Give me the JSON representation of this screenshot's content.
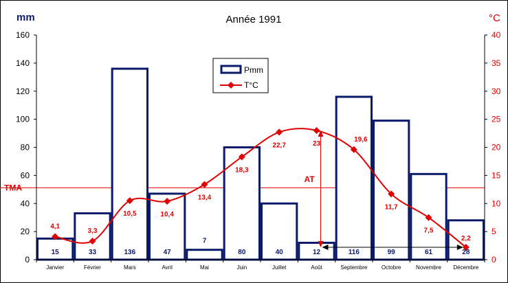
{
  "chart_data": {
    "type": "bar+line",
    "title": "Année 1991",
    "ylabel_left": "mm",
    "ylabel_right": "°C",
    "ylim_left": [
      0,
      160
    ],
    "ylim_right": [
      0,
      40
    ],
    "yticks_left": [
      "0",
      "20",
      "40",
      "60",
      "80",
      "100",
      "120",
      "140",
      "160"
    ],
    "yticks_right": [
      "0",
      "5",
      "10",
      "15",
      "20",
      "25",
      "30",
      "35",
      "40"
    ],
    "categories": [
      "Janvier",
      "Février",
      "Mars",
      "Avril",
      "Mai",
      "Juin",
      "Juillet",
      "Août",
      "Septembre",
      "Octobre",
      "Novembre",
      "Décembre"
    ],
    "series": [
      {
        "name": "Pmm",
        "type": "bar",
        "axis": "left",
        "color": "#0a1a6b",
        "values": [
          15,
          33,
          136,
          47,
          7,
          80,
          40,
          12,
          116,
          99,
          61,
          28
        ],
        "labels": [
          "15",
          "33",
          "136",
          "47",
          "7",
          "80",
          "40",
          "12",
          "116",
          "99",
          "61",
          "28"
        ]
      },
      {
        "name": "T°C",
        "type": "line",
        "axis": "right",
        "color": "#e00000",
        "values": [
          4.1,
          3.3,
          10.5,
          10.4,
          13.4,
          18.3,
          22.7,
          23,
          19.6,
          11.7,
          7.5,
          2.2
        ],
        "labels": [
          "4,1",
          "3,3",
          "10,5",
          "10,4",
          "13,4",
          "18,3",
          "22,7",
          "23",
          "19,6",
          "11,7",
          "7,5",
          "2,2"
        ]
      }
    ],
    "reference_line": {
      "label": "TMA",
      "value": 12.8,
      "axis": "right",
      "color": "#e00000"
    },
    "annotation": {
      "label": "AT",
      "color": "#e00000"
    },
    "legend_position": "top-center",
    "grid": false
  }
}
